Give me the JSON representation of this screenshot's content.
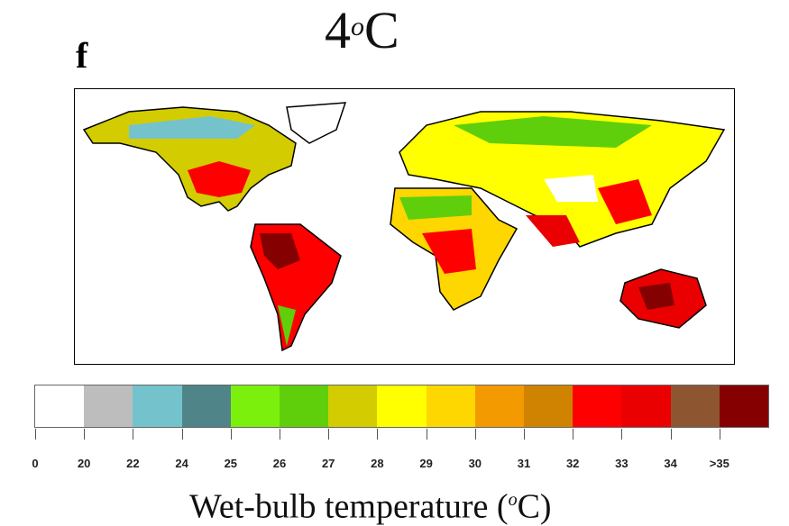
{
  "title": {
    "main": "4",
    "sup": "o",
    "unit": "C"
  },
  "panel_label": "f",
  "legend": {
    "ticks": [
      "0",
      "20",
      "22",
      "24",
      "25",
      "26",
      "27",
      "28",
      "29",
      "30",
      "31",
      "32",
      "33",
      "34",
      ">35"
    ],
    "colors": [
      "#ffffff",
      "#bdbdbd",
      "#74c3cc",
      "#4f8489",
      "#7bf00c",
      "#5fcf0b",
      "#d2cc00",
      "#ffff00",
      "#ffd700",
      "#f29a00",
      "#d08300",
      "#ff0000",
      "#ea0000",
      "#8e5630",
      "#850000"
    ]
  },
  "xlabel": {
    "text": "Wet-bulb temperature (",
    "sup": "o",
    "end": "C)"
  }
}
